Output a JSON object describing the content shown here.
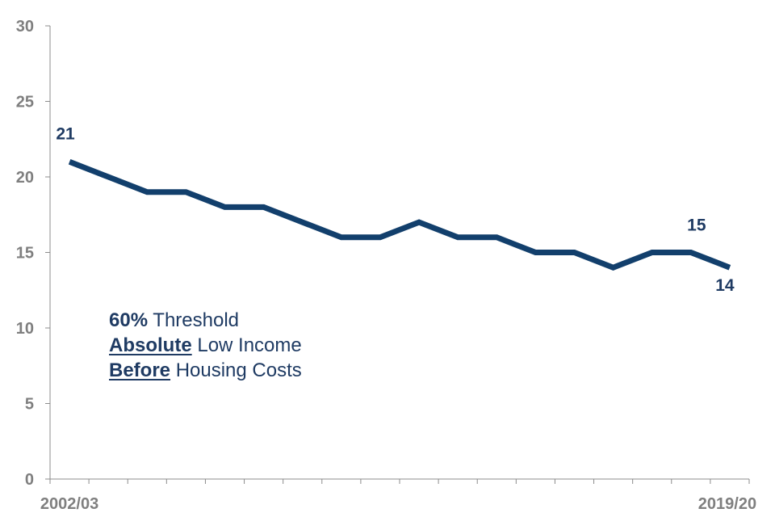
{
  "chart_data": {
    "type": "line",
    "title": "",
    "xlabel": "",
    "ylabel": "",
    "ylim": [
      0,
      30
    ],
    "yticks": [
      "0",
      "5",
      "10",
      "15",
      "20",
      "25",
      "30"
    ],
    "x_first_label": "2002/03",
    "x_last_label": "2019/20",
    "series": [
      {
        "name": "60% Threshold Absolute Low Income Before Housing Costs",
        "color": "#123f6c",
        "values": [
          21,
          20,
          19,
          19,
          18,
          18,
          17,
          16,
          16,
          17,
          16,
          16,
          15,
          15,
          14,
          15,
          15,
          14
        ]
      }
    ],
    "data_labels": {
      "first": "21",
      "second_last": "15",
      "last": "14"
    },
    "annotation": {
      "line1_bold": "60%",
      "line1_rest": " Threshold",
      "line2_bold": "Absolute",
      "line2_rest": " Low Income",
      "line3_bold": "Before",
      "line3_rest": " Housing Costs"
    }
  }
}
